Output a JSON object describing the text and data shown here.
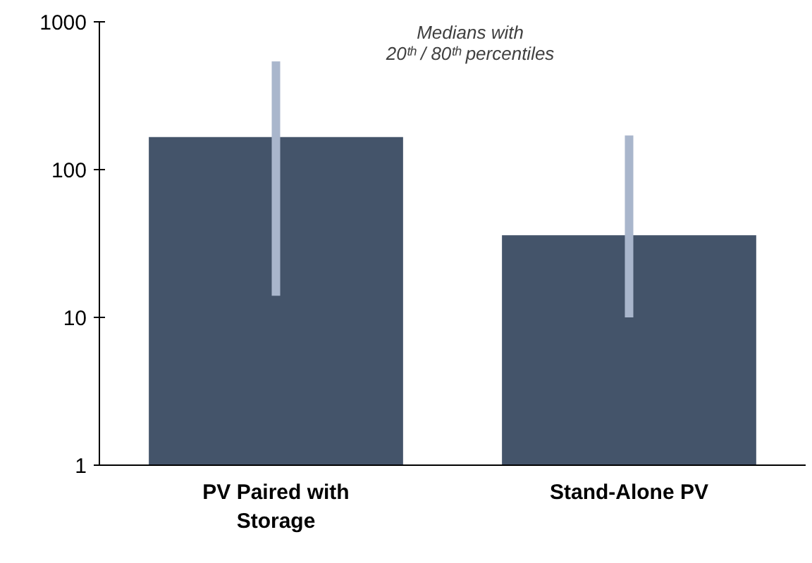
{
  "chart_data": {
    "type": "bar",
    "categories": [
      "PV Paired with Storage",
      "Stand-Alone PV"
    ],
    "values": [
      166,
      36
    ],
    "errors": [
      [
        14,
        540
      ],
      [
        10,
        170
      ]
    ],
    "color": "#44546a",
    "log": true,
    "ylim": [
      1,
      1000
    ],
    "yticks": [
      1,
      10,
      100,
      1000
    ],
    "grid": false,
    "annotations": [
      "Medians with\n20ᵗʰ / 80ᵗʰ percentiles"
    ]
  }
}
